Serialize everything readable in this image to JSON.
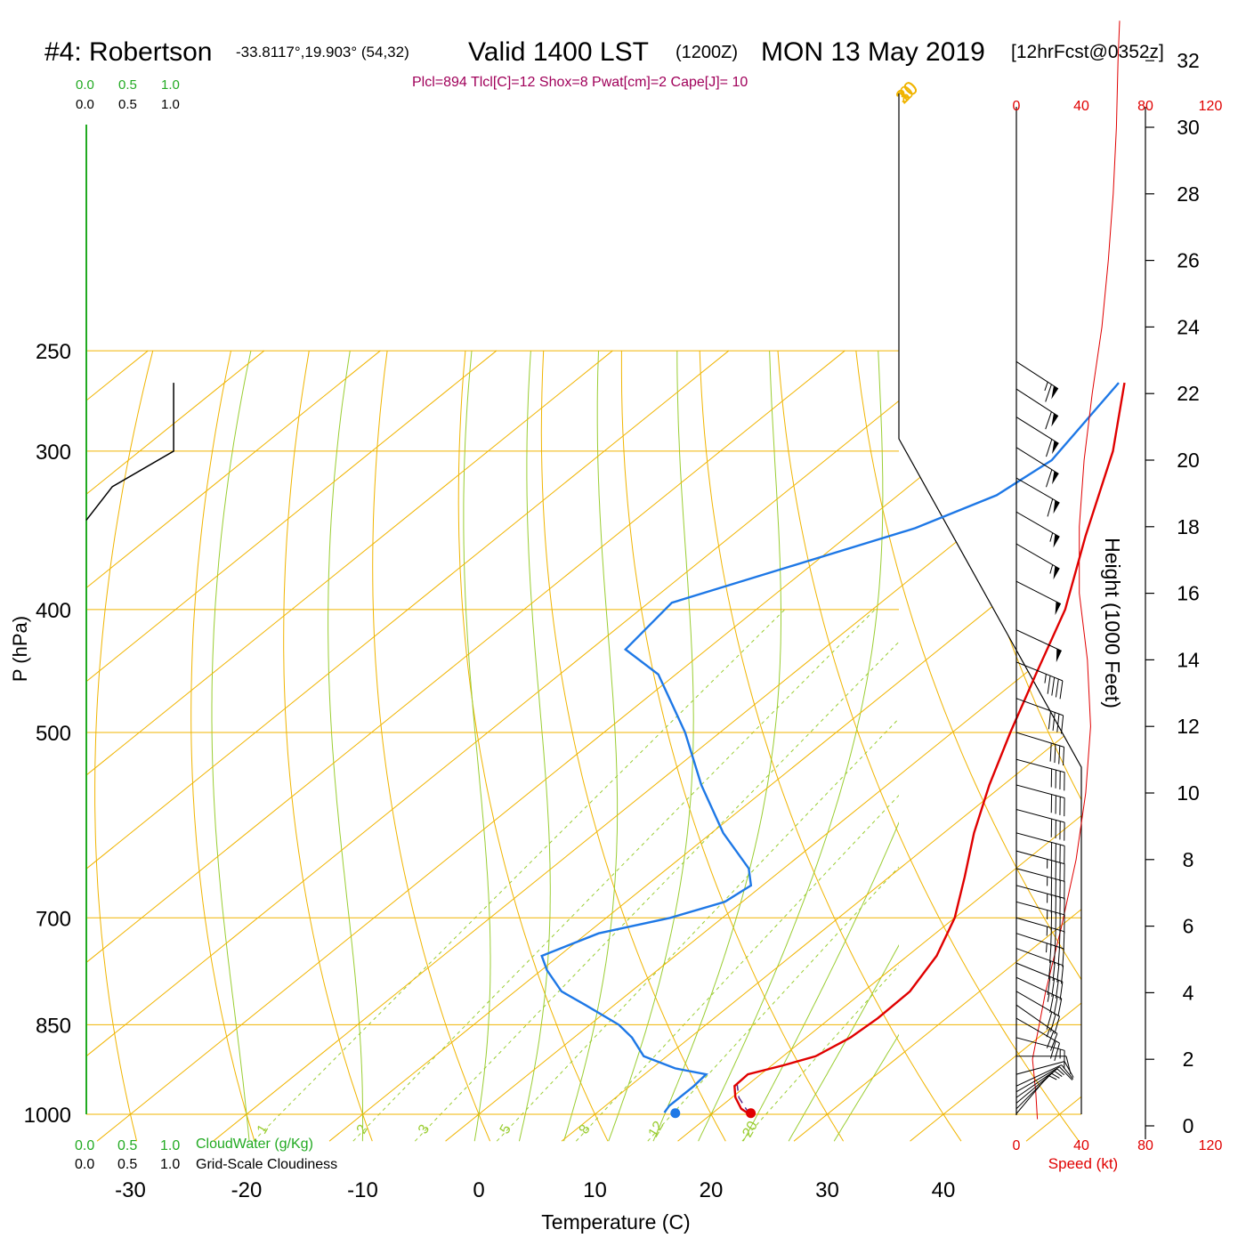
{
  "header": {
    "station": "#4: Robertson",
    "coords": "-33.8117°,19.903° (54,32)",
    "valid": "Valid 1400 LST",
    "zulu": "(1200Z)",
    "date": "MON 13 May 2019",
    "forecast": "[12hrFcst@0352z]",
    "indices": "Plcl=894 Tlcl[C]=12 Shox=8 Pwat[cm]=2 Cape[J]= 10"
  },
  "colors": {
    "isobar": "#f0b400",
    "isotherm": "#f0b400",
    "dry_adiabat": "#f0b400",
    "moist_adiabat": "#9acd32",
    "mixing_ratio": "#9acd32",
    "temperature": "#e00000",
    "dewpoint": "#1e78e6",
    "cloud_water": "#22aa22",
    "cloudiness": "#000000",
    "wind_speed": "#e00000",
    "indices": "#a0005a"
  },
  "legend": {
    "cloudwater_ticks": [
      "0.0",
      "0.5",
      "1.0"
    ],
    "cloudiness_ticks": [
      "0.0",
      "0.5",
      "1.0"
    ],
    "cloudwater_label": "CloudWater (g/Kg)",
    "cloudiness_label": "Grid-Scale Cloudiness"
  },
  "chart_data": {
    "type": "skew-t",
    "xlabel": "Temperature (C)",
    "ylabel": "P (hPa)",
    "x_ticks": [
      -30,
      -20,
      -10,
      0,
      10,
      20,
      30,
      40
    ],
    "pressure_levels": [
      250,
      300,
      400,
      500,
      700,
      850,
      1000
    ],
    "isotherm_labels": [
      "10",
      "0",
      "-10",
      "-20",
      "-30"
    ],
    "right_isotherm_labels": [
      "0",
      "10",
      "20",
      "30"
    ],
    "mixing_ratio_labels": [
      "1",
      "2",
      "3",
      "5",
      "8",
      "12",
      "20"
    ],
    "temperature_profile": [
      {
        "p": 1000,
        "t": 23.3
      },
      {
        "p": 990,
        "t": 22.0
      },
      {
        "p": 970,
        "t": 20.3
      },
      {
        "p": 950,
        "t": 19.0
      },
      {
        "p": 930,
        "t": 18.9
      },
      {
        "p": 915,
        "t": 21.0
      },
      {
        "p": 900,
        "t": 22.8
      },
      {
        "p": 870,
        "t": 23.8
      },
      {
        "p": 840,
        "t": 24.1
      },
      {
        "p": 800,
        "t": 24.0
      },
      {
        "p": 750,
        "t": 22.5
      },
      {
        "p": 700,
        "t": 20.0
      },
      {
        "p": 650,
        "t": 16.5
      },
      {
        "p": 600,
        "t": 12.6
      },
      {
        "p": 550,
        "t": 8.8
      },
      {
        "p": 500,
        "t": 5.0
      },
      {
        "p": 450,
        "t": 1.0
      },
      {
        "p": 400,
        "t": -3.4
      },
      {
        "p": 350,
        "t": -9.5
      },
      {
        "p": 300,
        "t": -16.2
      },
      {
        "p": 265,
        "t": -22.5
      }
    ],
    "dewpoint_profile": [
      {
        "p": 997,
        "t": 15.8
      },
      {
        "p": 985,
        "t": 15.5
      },
      {
        "p": 950,
        "t": 15.5
      },
      {
        "p": 930,
        "t": 15.3
      },
      {
        "p": 920,
        "t": 12.0
      },
      {
        "p": 900,
        "t": 8.0
      },
      {
        "p": 870,
        "t": 5.0
      },
      {
        "p": 850,
        "t": 2.5
      },
      {
        "p": 820,
        "t": -2.5
      },
      {
        "p": 800,
        "t": -6.0
      },
      {
        "p": 770,
        "t": -9.5
      },
      {
        "p": 750,
        "t": -11.5
      },
      {
        "p": 720,
        "t": -9.0
      },
      {
        "p": 700,
        "t": -4.5
      },
      {
        "p": 680,
        "t": -1.5
      },
      {
        "p": 660,
        "t": -1.0
      },
      {
        "p": 640,
        "t": -3.0
      },
      {
        "p": 600,
        "t": -9.0
      },
      {
        "p": 550,
        "t": -16.0
      },
      {
        "p": 500,
        "t": -23.0
      },
      {
        "p": 450,
        "t": -31.5
      },
      {
        "p": 430,
        "t": -37.0
      },
      {
        "p": 395,
        "t": -38.0
      },
      {
        "p": 345,
        "t": -25.0
      },
      {
        "p": 325,
        "t": -21.5
      },
      {
        "p": 305,
        "t": -20.5
      },
      {
        "p": 265,
        "t": -23.0
      }
    ],
    "parcel_path": [
      {
        "p": 1000,
        "t": 23.3
      },
      {
        "p": 970,
        "t": 20.6
      },
      {
        "p": 945,
        "t": 18.9
      }
    ],
    "cloudiness_profile": [
      {
        "p": 265,
        "v": 0.74
      },
      {
        "p": 300,
        "v": 0.74
      },
      {
        "p": 320,
        "v": 0.22
      },
      {
        "p": 340,
        "v": 0.0
      }
    ],
    "height_axis": {
      "label": "Height (1000 Feet)",
      "ticks": [
        0,
        2,
        4,
        6,
        8,
        10,
        12,
        14,
        16,
        18,
        20,
        22,
        24,
        26,
        28,
        30,
        32
      ]
    },
    "wind_speed_axis": {
      "label": "Speed (kt)",
      "ticks": [
        "0",
        "40",
        "80",
        "120"
      ],
      "range": [
        0,
        120
      ]
    },
    "wind_speed_profile": [
      {
        "h": 0.2,
        "s": 13
      },
      {
        "h": 1,
        "s": 12
      },
      {
        "h": 2,
        "s": 10
      },
      {
        "h": 3,
        "s": 14
      },
      {
        "h": 4,
        "s": 18
      },
      {
        "h": 6,
        "s": 28
      },
      {
        "h": 8,
        "s": 37
      },
      {
        "h": 10,
        "s": 43
      },
      {
        "h": 12,
        "s": 46
      },
      {
        "h": 14,
        "s": 44
      },
      {
        "h": 16,
        "s": 39
      },
      {
        "h": 18,
        "s": 39
      },
      {
        "h": 20,
        "s": 42
      },
      {
        "h": 22,
        "s": 47
      },
      {
        "h": 24,
        "s": 53
      },
      {
        "h": 26,
        "s": 57
      },
      {
        "h": 28,
        "s": 60
      },
      {
        "h": 30,
        "s": 62
      },
      {
        "h": 32,
        "s": 63
      },
      {
        "h": 33.2,
        "s": 64
      }
    ],
    "wind_barbs": [
      {
        "p": 999,
        "dir": 220,
        "spd": 3
      },
      {
        "p": 990,
        "dir": 225,
        "spd": 4
      },
      {
        "p": 980,
        "dir": 230,
        "spd": 6
      },
      {
        "p": 970,
        "dir": 235,
        "spd": 7
      },
      {
        "p": 960,
        "dir": 240,
        "spd": 8
      },
      {
        "p": 950,
        "dir": 245,
        "spd": 9
      },
      {
        "p": 930,
        "dir": 255,
        "spd": 9
      },
      {
        "p": 900,
        "dir": 270,
        "spd": 11
      },
      {
        "p": 870,
        "dir": 285,
        "spd": 14
      },
      {
        "p": 840,
        "dir": 300,
        "spd": 18
      },
      {
        "p": 820,
        "dir": 305,
        "spd": 24
      },
      {
        "p": 800,
        "dir": 300,
        "spd": 30
      },
      {
        "p": 780,
        "dir": 295,
        "spd": 35
      },
      {
        "p": 760,
        "dir": 292,
        "spd": 38
      },
      {
        "p": 740,
        "dir": 290,
        "spd": 40
      },
      {
        "p": 720,
        "dir": 288,
        "spd": 43
      },
      {
        "p": 700,
        "dir": 286,
        "spd": 44
      },
      {
        "p": 680,
        "dir": 285,
        "spd": 45
      },
      {
        "p": 660,
        "dir": 285,
        "spd": 46
      },
      {
        "p": 640,
        "dir": 285,
        "spd": 46
      },
      {
        "p": 620,
        "dir": 285,
        "spd": 45
      },
      {
        "p": 600,
        "dir": 285,
        "spd": 42
      },
      {
        "p": 575,
        "dir": 285,
        "spd": 40
      },
      {
        "p": 550,
        "dir": 285,
        "spd": 38
      },
      {
        "p": 525,
        "dir": 285,
        "spd": 38
      },
      {
        "p": 500,
        "dir": 287,
        "spd": 39
      },
      {
        "p": 470,
        "dir": 290,
        "spd": 42
      },
      {
        "p": 440,
        "dir": 292,
        "spd": 46
      },
      {
        "p": 415,
        "dir": 295,
        "spd": 48
      },
      {
        "p": 380,
        "dir": 297,
        "spd": 52
      },
      {
        "p": 355,
        "dir": 300,
        "spd": 55
      },
      {
        "p": 335,
        "dir": 300,
        "spd": 57
      },
      {
        "p": 315,
        "dir": 300,
        "spd": 59
      },
      {
        "p": 298,
        "dir": 302,
        "spd": 60
      },
      {
        "p": 282,
        "dir": 302,
        "spd": 61
      },
      {
        "p": 268,
        "dir": 303,
        "spd": 62
      },
      {
        "p": 255,
        "dir": 303,
        "spd": 63
      }
    ]
  }
}
